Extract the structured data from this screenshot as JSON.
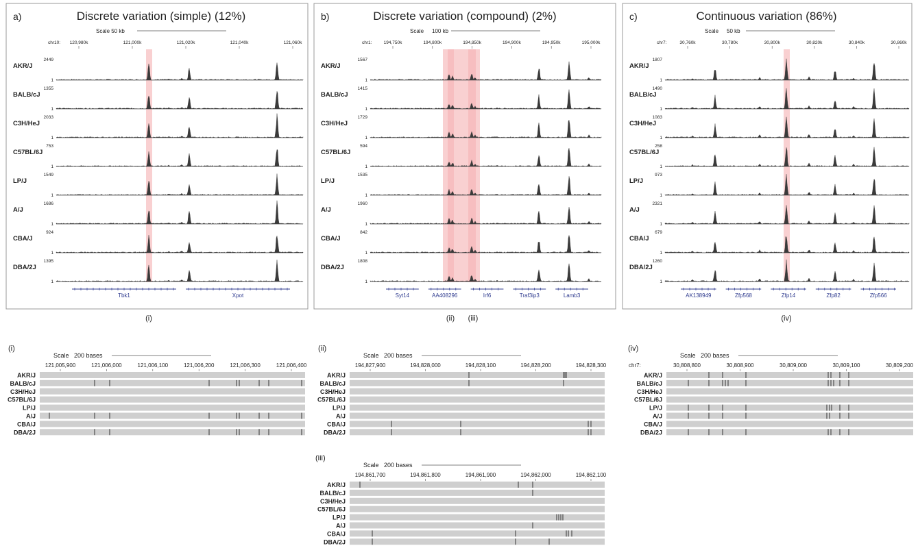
{
  "top_panels": [
    {
      "letter": "a)",
      "title": "Discrete variation (simple) (12%)",
      "scale_label": "Scale 50 kb",
      "chrom_label": "chr10:",
      "ticks": [
        "120,980k",
        "121,000k",
        "121,020k",
        "121,040k",
        "121,060k"
      ],
      "strains": [
        "AKR/J",
        "BALB/cJ",
        "C3H/HeJ",
        "C57BL/6J",
        "LP/J",
        "A/J",
        "CBA/J",
        "DBA/2J"
      ],
      "max_values": [
        "2449",
        "1355",
        "2033",
        "753",
        "1549",
        "1686",
        "924",
        "1395"
      ],
      "min_value": "1",
      "genes": [
        "Tbk1",
        "Xpot"
      ],
      "markers": [
        "(i)"
      ]
    },
    {
      "letter": "b)",
      "title": "Discrete variation (compound) (2%)",
      "scale_label": "Scale",
      "scale_value": "100 kb",
      "chrom_label": "chr1:",
      "ticks": [
        "194,750k",
        "194,800k",
        "194,850k",
        "194,900k",
        "194,950k",
        "195,000k"
      ],
      "strains": [
        "AKR/J",
        "BALB/cJ",
        "C3H/HeJ",
        "C57BL/6J",
        "LP/J",
        "A/J",
        "CBA/J",
        "DBA/2J"
      ],
      "max_values": [
        "1567",
        "1415",
        "1729",
        "594",
        "1535",
        "1960",
        "842",
        "1808"
      ],
      "min_value": "1",
      "genes": [
        "Syt14",
        "AA408296",
        "Irf6",
        "Traf3ip3",
        "Lamb3"
      ],
      "markers": [
        "(ii)",
        "(iii)"
      ]
    },
    {
      "letter": "c)",
      "title": "Continuous variation (86%)",
      "scale_label": "Scale",
      "scale_value": "50 kb",
      "chrom_label": "chr7:",
      "ticks": [
        "30,760k",
        "30,780k",
        "30,800k",
        "30,820k",
        "30,840k",
        "30,860k"
      ],
      "strains": [
        "AKR/J",
        "BALB/cJ",
        "C3H/HeJ",
        "C57BL/6J",
        "LP/J",
        "A/J",
        "CBA/J",
        "DBA/2J"
      ],
      "max_values": [
        "1807",
        "1490",
        "1083",
        "258",
        "973",
        "2321",
        "679",
        "1260"
      ],
      "min_value": "1",
      "genes": [
        "AK138949",
        "Zfp568",
        "Zfp14",
        "Zfp82",
        "Zfp566"
      ],
      "markers": [
        "(iv)"
      ]
    }
  ],
  "bottom_panels": [
    {
      "label": "(i)",
      "scale_label": "Scale",
      "scale_value": "200 bases",
      "chrom_label": "",
      "ticks": [
        "121,005,900",
        "121,006,000",
        "121,006,100",
        "121,006,200",
        "121,006,300",
        "121,006,400"
      ],
      "strains": [
        "AKR/J",
        "BALB/cJ",
        "C3H/HeJ",
        "C57BL/6J",
        "LP/J",
        "A/J",
        "CBA/J",
        "DBA/2J"
      ]
    },
    {
      "label": "(ii)",
      "scale_label": "Scale",
      "scale_value": "200 bases",
      "chrom_label": "",
      "ticks": [
        "194,827,900",
        "194,828,000",
        "194,828,100",
        "194,828,200",
        "194,828,300"
      ],
      "strains": [
        "AKR/J",
        "BALB/cJ",
        "C3H/HeJ",
        "C57BL/6J",
        "LP/J",
        "A/J",
        "CBA/J",
        "DBA/2J"
      ]
    },
    {
      "label": "(iii)",
      "scale_label": "Scale",
      "scale_value": "200 bases",
      "chrom_label": "",
      "ticks": [
        "194,861,700",
        "194,861,800",
        "194,861,900",
        "194,862,000",
        "194,862,100"
      ],
      "strains": [
        "AKR/J",
        "BALB/cJ",
        "C3H/HeJ",
        "C57BL/6J",
        "LP/J",
        "A/J",
        "CBA/J",
        "DBA/2J"
      ]
    },
    {
      "label": "(iv)",
      "scale_label": "Scale",
      "scale_value": "200 bases",
      "chrom_label": "chr7:",
      "ticks": [
        "30,808,800",
        "30,808,900",
        "30,809,000",
        "30,809,100",
        "30,809,200"
      ],
      "strains": [
        "AKR/J",
        "BALB/cJ",
        "C3H/HeJ",
        "C57BL/6J",
        "LP/J",
        "A/J",
        "CBA/J",
        "DBA/2J"
      ]
    }
  ],
  "colors": {
    "highlight": "#f4a9ab",
    "signal": "#3a3a3a",
    "gene": "#2f3b8f",
    "variant_bar": "#cfcfcf",
    "variant_mark": "#333333",
    "border": "#9a9a9a"
  }
}
